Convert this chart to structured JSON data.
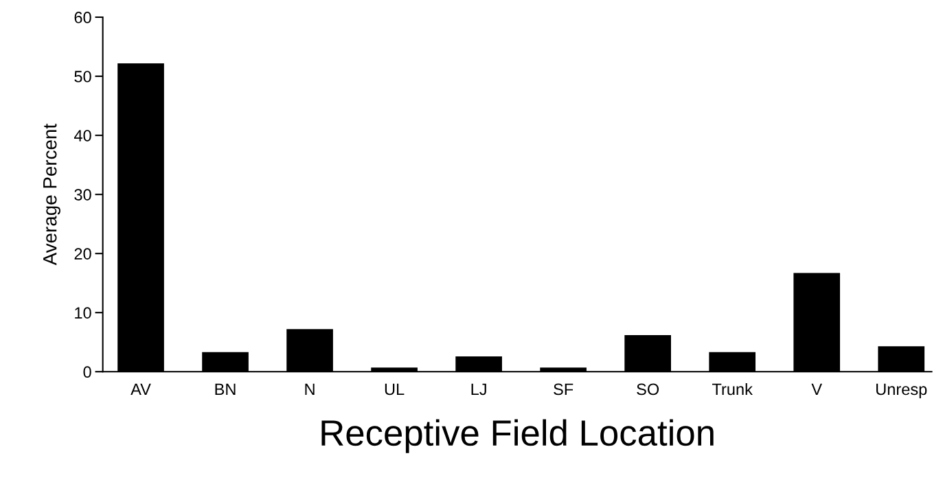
{
  "chart_data": {
    "type": "bar",
    "xlabel": "Receptive Field Location",
    "ylabel": "Average Percent",
    "categories": [
      "AV",
      "BN",
      "N",
      "UL",
      "LJ",
      "SF",
      "SO",
      "Trunk",
      "V",
      "Unresp"
    ],
    "values": [
      52.2,
      3.3,
      7.2,
      0.7,
      2.6,
      0.7,
      6.2,
      3.3,
      16.7,
      4.3
    ],
    "color": "#000000",
    "ylim": [
      0,
      60
    ],
    "yticks": [
      0,
      10,
      20,
      30,
      40,
      50,
      60
    ],
    "grid": false
  }
}
